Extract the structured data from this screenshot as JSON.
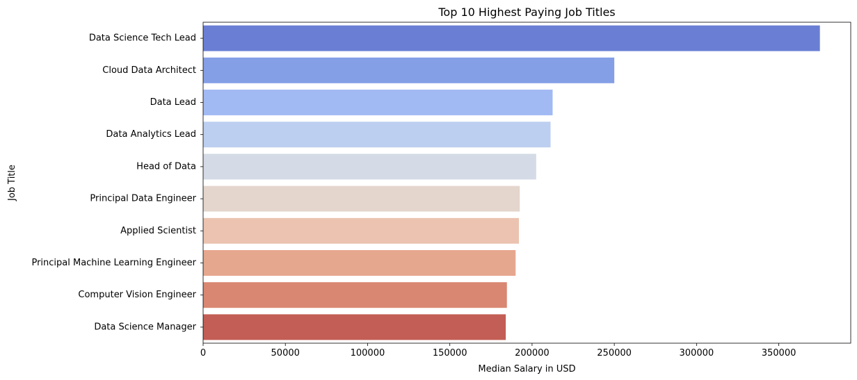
{
  "chart_data": {
    "type": "bar",
    "orientation": "horizontal",
    "title": "Top 10 Highest Paying Job Titles",
    "xlabel": "Median Salary in USD",
    "ylabel": "Job Title",
    "xlim": [
      0,
      393750
    ],
    "xticks": [
      0,
      50000,
      100000,
      150000,
      200000,
      250000,
      300000,
      350000
    ],
    "grid": false,
    "categories": [
      "Data Science Tech Lead",
      "Cloud Data Architect",
      "Data Lead",
      "Data Analytics Lead",
      "Head of Data",
      "Principal Data Engineer",
      "Applied Scientist",
      "Principal Machine Learning Engineer",
      "Computer Vision Engineer",
      "Data Science Manager"
    ],
    "values": [
      375000,
      250000,
      212500,
      211250,
      202500,
      192500,
      192000,
      190000,
      184700,
      184000
    ],
    "colors": [
      "#6a7fd4",
      "#859fe6",
      "#a2baf3",
      "#bccff0",
      "#d4dbe6",
      "#e4d6cd",
      "#ebc3b0",
      "#e6a78f",
      "#d98772",
      "#c25e55"
    ]
  }
}
